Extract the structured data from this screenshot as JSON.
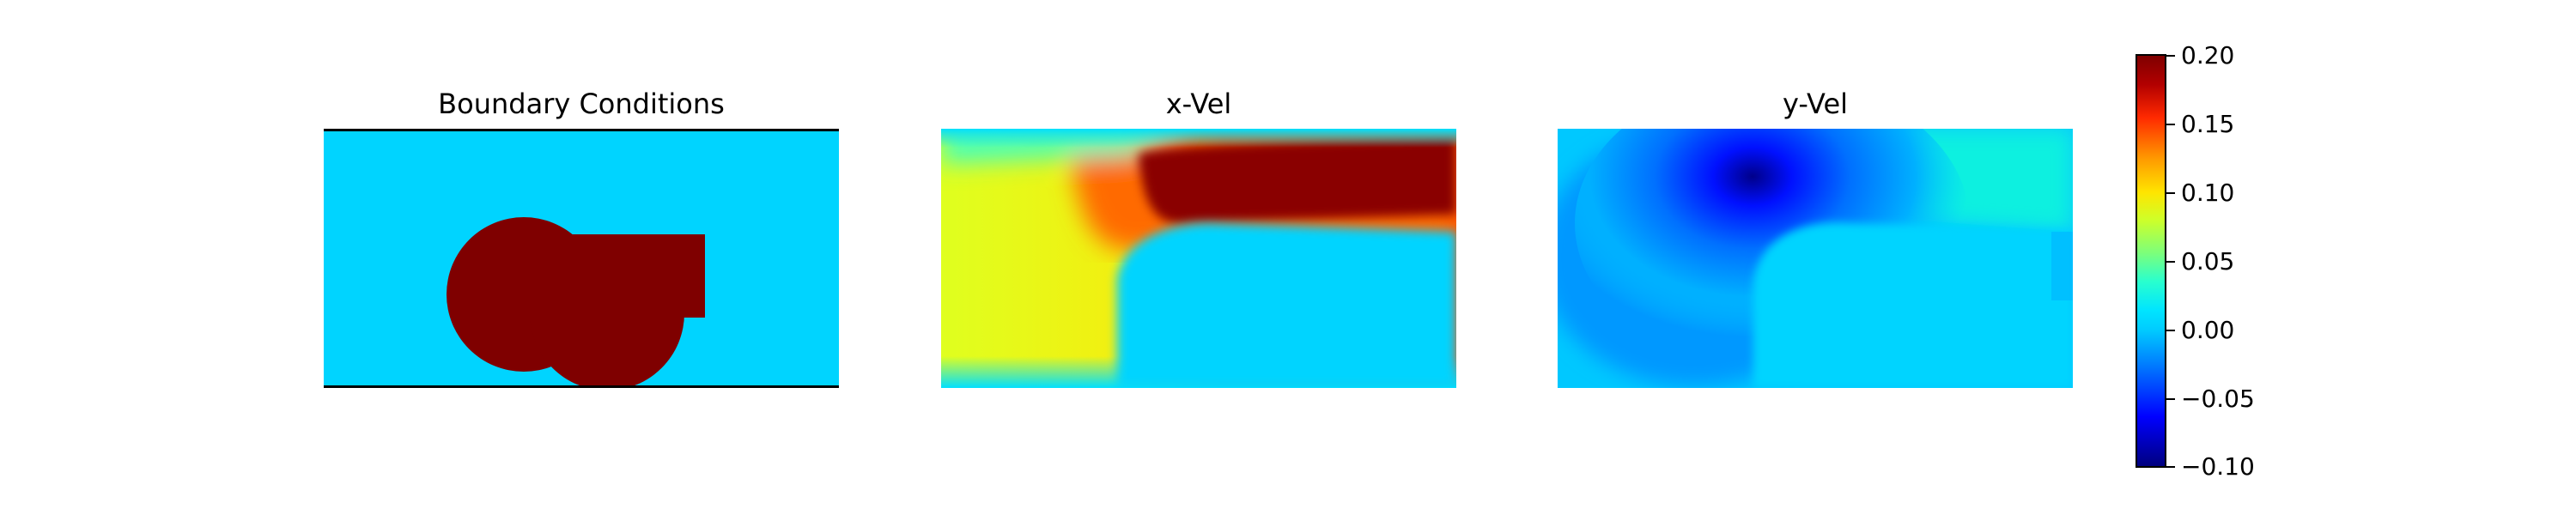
{
  "chart_data": [
    {
      "type": "heatmap",
      "title": "Boundary Conditions",
      "colormap": "jet",
      "description_colors": {
        "background": "#00d4ff",
        "obstacle": "#7f0000"
      },
      "walls": [
        "top",
        "bottom"
      ]
    },
    {
      "type": "heatmap",
      "title": "x-Vel",
      "colormap": "jet",
      "value_range": [
        -0.1,
        0.2
      ]
    },
    {
      "type": "heatmap",
      "title": "y-Vel",
      "colormap": "jet",
      "value_range": [
        -0.1,
        0.2
      ]
    }
  ],
  "colorbar": {
    "ticks": [
      "0.20",
      "0.15",
      "0.10",
      "0.05",
      "0.00",
      "−0.05",
      "−0.10"
    ],
    "range": [
      -0.1,
      0.2
    ]
  },
  "colors": {
    "jet_dark_red": "#7f0000",
    "jet_cyan": "#00d4ff",
    "jet_dark_blue": "#00007f",
    "jet_yellow": "#dfff1f"
  }
}
